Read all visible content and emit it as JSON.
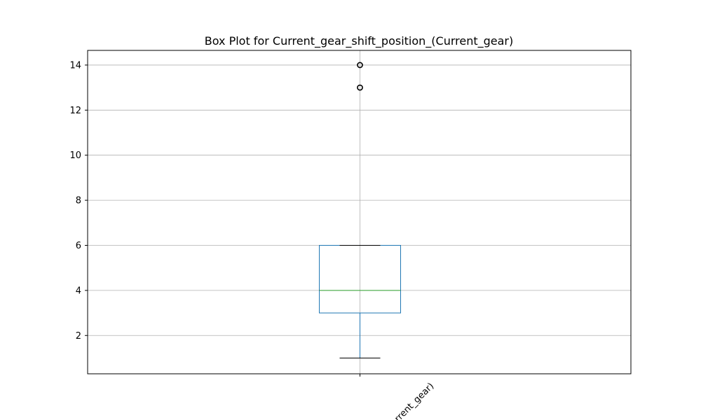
{
  "chart_data": {
    "type": "box",
    "title": "Box Plot for Current_gear_shift_position_(Current_gear)",
    "categories": [
      "Current_gear_shift_position_(Current_gear)"
    ],
    "xtick_label_visible": "rrent_gear)",
    "ylim": [
      0.3,
      14.65
    ],
    "yticks": [
      2,
      4,
      6,
      8,
      10,
      12,
      14
    ],
    "grid": true,
    "colors": {
      "box": "#1f77b4",
      "median": "#2ca02c",
      "whisker": "#1f77b4",
      "cap": "#000000",
      "flier": "#000000",
      "grid": "#b0b0b0"
    },
    "boxes": [
      {
        "whisker_low": 1,
        "q1": 3,
        "median": 4,
        "q3": 6,
        "whisker_high": 6,
        "outliers": [
          13,
          14
        ]
      }
    ]
  }
}
